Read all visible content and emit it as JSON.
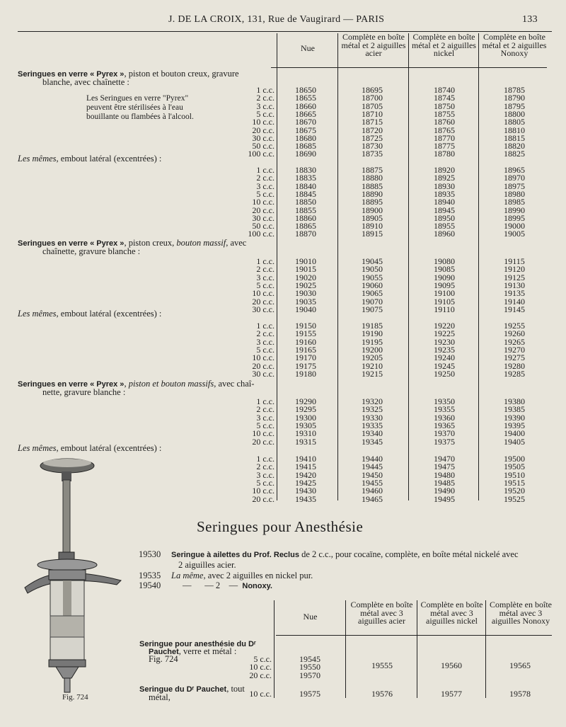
{
  "header": {
    "title": "J. DE LA CROIX, 131, Rue de Vaugirard — PARIS",
    "page_number": "133"
  },
  "table1": {
    "columns": [
      "Nue",
      "Complète en boîte métal et 2 aiguilles acier",
      "Complète en boîte métal et 2 aiguilles nickel",
      "Complète en boîte métal et 2 aiguilles Nonoxy"
    ],
    "note": "Les Seringues en verre \"Pyrex\" peuvent être stérilisées à l'eau bouillante ou flambées à l'alcool.",
    "sections": [
      {
        "title": [
          {
            "t": "Seringues en verre « Pyrex »",
            "s": "b"
          },
          {
            "t": ", piston et bouton creux, gravure",
            "s": ""
          }
        ],
        "title2": "blanche, avec chaînette :",
        "rows": [
          [
            "1 c.c.",
            "18650",
            "18695",
            "18740",
            "18785"
          ],
          [
            "2 c.c.",
            "18655",
            "18700",
            "18745",
            "18790"
          ],
          [
            "3 c.c.",
            "18660",
            "18705",
            "18750",
            "18795"
          ],
          [
            "5 c.c.",
            "18665",
            "18710",
            "18755",
            "18800"
          ],
          [
            "10 c.c.",
            "18670",
            "18715",
            "18760",
            "18805"
          ],
          [
            "20 c.c.",
            "18675",
            "18720",
            "18765",
            "18810"
          ],
          [
            "30 c.c.",
            "18680",
            "18725",
            "18770",
            "18815"
          ],
          [
            "50 c.c.",
            "18685",
            "18730",
            "18775",
            "18820"
          ],
          [
            "100 c.c.",
            "18690",
            "18735",
            "18780",
            "18825"
          ]
        ]
      },
      {
        "title": [
          {
            "t": "Les mêmes",
            "s": "i"
          },
          {
            "t": ", embout latéral (excentrées) :",
            "s": ""
          }
        ],
        "title2": "",
        "rows": [
          [
            "1 c.c.",
            "18830",
            "18875",
            "18920",
            "18965"
          ],
          [
            "2 c.c.",
            "18835",
            "18880",
            "18925",
            "18970"
          ],
          [
            "3 c.c.",
            "18840",
            "18885",
            "18930",
            "18975"
          ],
          [
            "5 c.c.",
            "18845",
            "18890",
            "18935",
            "18980"
          ],
          [
            "10 c.c.",
            "18850",
            "18895",
            "18940",
            "18985"
          ],
          [
            "20 c.c.",
            "18855",
            "18900",
            "18945",
            "18990"
          ],
          [
            "30 c.c.",
            "18860",
            "18905",
            "18950",
            "18995"
          ],
          [
            "50 c.c.",
            "18865",
            "18910",
            "18955",
            "19000"
          ],
          [
            "100 c.c.",
            "18870",
            "18915",
            "18960",
            "19005"
          ]
        ]
      },
      {
        "title": [
          {
            "t": "Seringues en verre « Pyrex »",
            "s": "b"
          },
          {
            "t": ", piston creux, ",
            "s": ""
          },
          {
            "t": "bouton massif",
            "s": "i"
          },
          {
            "t": ", avec",
            "s": ""
          }
        ],
        "title2": "chaînette, gravure blanche :",
        "rows": [
          [
            "1 c.c.",
            "19010",
            "19045",
            "19080",
            "19115"
          ],
          [
            "2 c.c.",
            "19015",
            "19050",
            "19085",
            "19120"
          ],
          [
            "3 c.c.",
            "19020",
            "19055",
            "19090",
            "19125"
          ],
          [
            "5 c.c.",
            "19025",
            "19060",
            "19095",
            "19130"
          ],
          [
            "10 c.c.",
            "19030",
            "19065",
            "19100",
            "19135"
          ],
          [
            "20 c.c.",
            "19035",
            "19070",
            "19105",
            "19140"
          ],
          [
            "30 c.c.",
            "19040",
            "19075",
            "19110",
            "19145"
          ]
        ]
      },
      {
        "title": [
          {
            "t": "Les mêmes",
            "s": "i"
          },
          {
            "t": ", embout latéral (excentrées) :",
            "s": ""
          }
        ],
        "title2": "",
        "rows": [
          [
            "1 c.c.",
            "19150",
            "19185",
            "19220",
            "19255"
          ],
          [
            "2 c.c.",
            "19155",
            "19190",
            "19225",
            "19260"
          ],
          [
            "3 c.c.",
            "19160",
            "19195",
            "19230",
            "19265"
          ],
          [
            "5 c.c.",
            "19165",
            "19200",
            "19235",
            "19270"
          ],
          [
            "10 c.c.",
            "19170",
            "19205",
            "19240",
            "19275"
          ],
          [
            "20 c.c.",
            "19175",
            "19210",
            "19245",
            "19280"
          ],
          [
            "30 c.c.",
            "19180",
            "19215",
            "19250",
            "19285"
          ]
        ]
      },
      {
        "title": [
          {
            "t": "Seringues en verre « Pyrex »",
            "s": "b"
          },
          {
            "t": ", ",
            "s": ""
          },
          {
            "t": "piston et bouton massifs",
            "s": "i"
          },
          {
            "t": ", avec chaî-",
            "s": ""
          }
        ],
        "title2": "nette, gravure blanche :",
        "rows": [
          [
            "1 c.c.",
            "19290",
            "19320",
            "19350",
            "19380"
          ],
          [
            "2 c.c.",
            "19295",
            "19325",
            "19355",
            "19385"
          ],
          [
            "3 c.c.",
            "19300",
            "19330",
            "19360",
            "19390"
          ],
          [
            "5 c.c.",
            "19305",
            "19335",
            "19365",
            "19395"
          ],
          [
            "10 c.c.",
            "19310",
            "19340",
            "19370",
            "19400"
          ],
          [
            "20 c.c.",
            "19315",
            "19345",
            "19375",
            "19405"
          ]
        ]
      },
      {
        "title": [
          {
            "t": "Les mêmes",
            "s": "i"
          },
          {
            "t": ", embout latéral (excentrées) :",
            "s": ""
          }
        ],
        "title2": "",
        "rows": [
          [
            "1 c.c.",
            "19410",
            "19440",
            "19470",
            "19500"
          ],
          [
            "2 c.c.",
            "19415",
            "19445",
            "19475",
            "19505"
          ],
          [
            "3 c.c.",
            "19420",
            "19450",
            "19480",
            "19510"
          ],
          [
            "5 c.c.",
            "19425",
            "19455",
            "19485",
            "19515"
          ],
          [
            "10 c.c.",
            "19430",
            "19460",
            "19490",
            "19520"
          ],
          [
            "20 c.c.",
            "19435",
            "19465",
            "19495",
            "19525"
          ]
        ]
      }
    ]
  },
  "anesthesie": {
    "title": "Seringues pour Anesthésie",
    "entries": [
      {
        "ref": "19530",
        "bold": "Seringue à ailettes du Prof. Reclus",
        "text": " de 2 c.c., pour cocaïne, complète, en boîte métal nickelé avec",
        "cont": "2 aiguilles acier."
      },
      {
        "ref": "19535",
        "italic": "La même",
        "text": ", avec 2 aiguilles en nickel pur."
      },
      {
        "ref": "19540",
        "text": "—      — 2    —  ",
        "bold": "Nonoxy."
      }
    ]
  },
  "table2": {
    "columns": [
      "Nue",
      "Complète en boîte métal avec 3 aiguilles acier",
      "Complète en boîte métal avec 3 aiguilles nickel",
      "Complète en boîte métal avec 3 aiguilles Nonoxy"
    ],
    "item1": {
      "line1": "Seringue pour anesthésie du Dʳ",
      "line2_bold": "Pauchet",
      "line2": ", verre et métal :",
      "fig": "Fig. 724",
      "sizes": [
        "5 c.c.",
        "10 c.c.",
        "20 c.c."
      ],
      "nue": [
        "19545",
        "19550",
        "19570"
      ],
      "acier": "19555",
      "nickel": "19560",
      "nonoxy": "19565"
    },
    "item2": {
      "line1_bold": "Seringue du Dʳ Pauchet",
      "line1": ", tout",
      "line2": "métal,",
      "size": "10 c.c.",
      "nue": "19575",
      "acier": "19576",
      "nickel": "19577",
      "nonoxy": "19578"
    }
  },
  "figure": {
    "caption": "Fig. 724"
  }
}
